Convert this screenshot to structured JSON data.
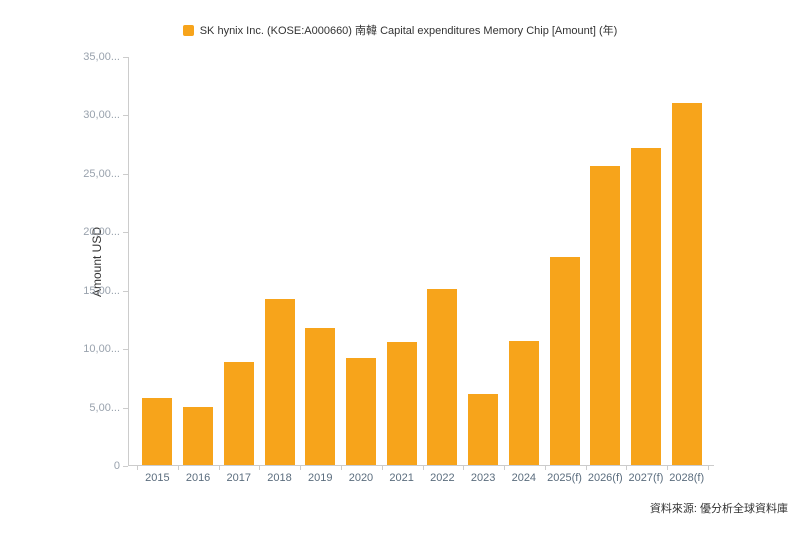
{
  "legend": {
    "label": "SK hynix Inc. (KOSE:A000660) 南韓 Capital expenditures Memory Chip [Amount] (年)"
  },
  "source": "資料來源: 優分析全球資料庫",
  "colors": {
    "bar": "#f7a41b",
    "axis_line": "#cccccc",
    "x_label": "#5b6d7e",
    "y_label": "#99a2ad",
    "text": "#333333"
  },
  "chart_data": {
    "type": "bar",
    "title": "SK hynix Inc. (KOSE:A000660) 南韓 Capital expenditures Memory Chip [Amount] (年)",
    "xlabel": "",
    "ylabel": "Amount USD",
    "categories": [
      "2015",
      "2016",
      "2017",
      "2018",
      "2019",
      "2020",
      "2021",
      "2022",
      "2023",
      "2024",
      "2025(f)",
      "2026(f)",
      "2027(f)",
      "2028(f)"
    ],
    "values": [
      5700,
      5000,
      8800,
      14200,
      11700,
      9200,
      10500,
      15100,
      6100,
      10600,
      17800,
      25600,
      27100,
      31000
    ],
    "ylim": [
      0,
      35000
    ],
    "y_tick_values": [
      35000,
      30000,
      25000,
      20000,
      15000,
      10000,
      5000,
      0
    ],
    "y_tick_labels": [
      "35,00...",
      "30,00...",
      "25,00...",
      "20,00...",
      "15,00...",
      "10,00...",
      "5,00...",
      "0"
    ],
    "grid": false,
    "legend_position": "top"
  }
}
